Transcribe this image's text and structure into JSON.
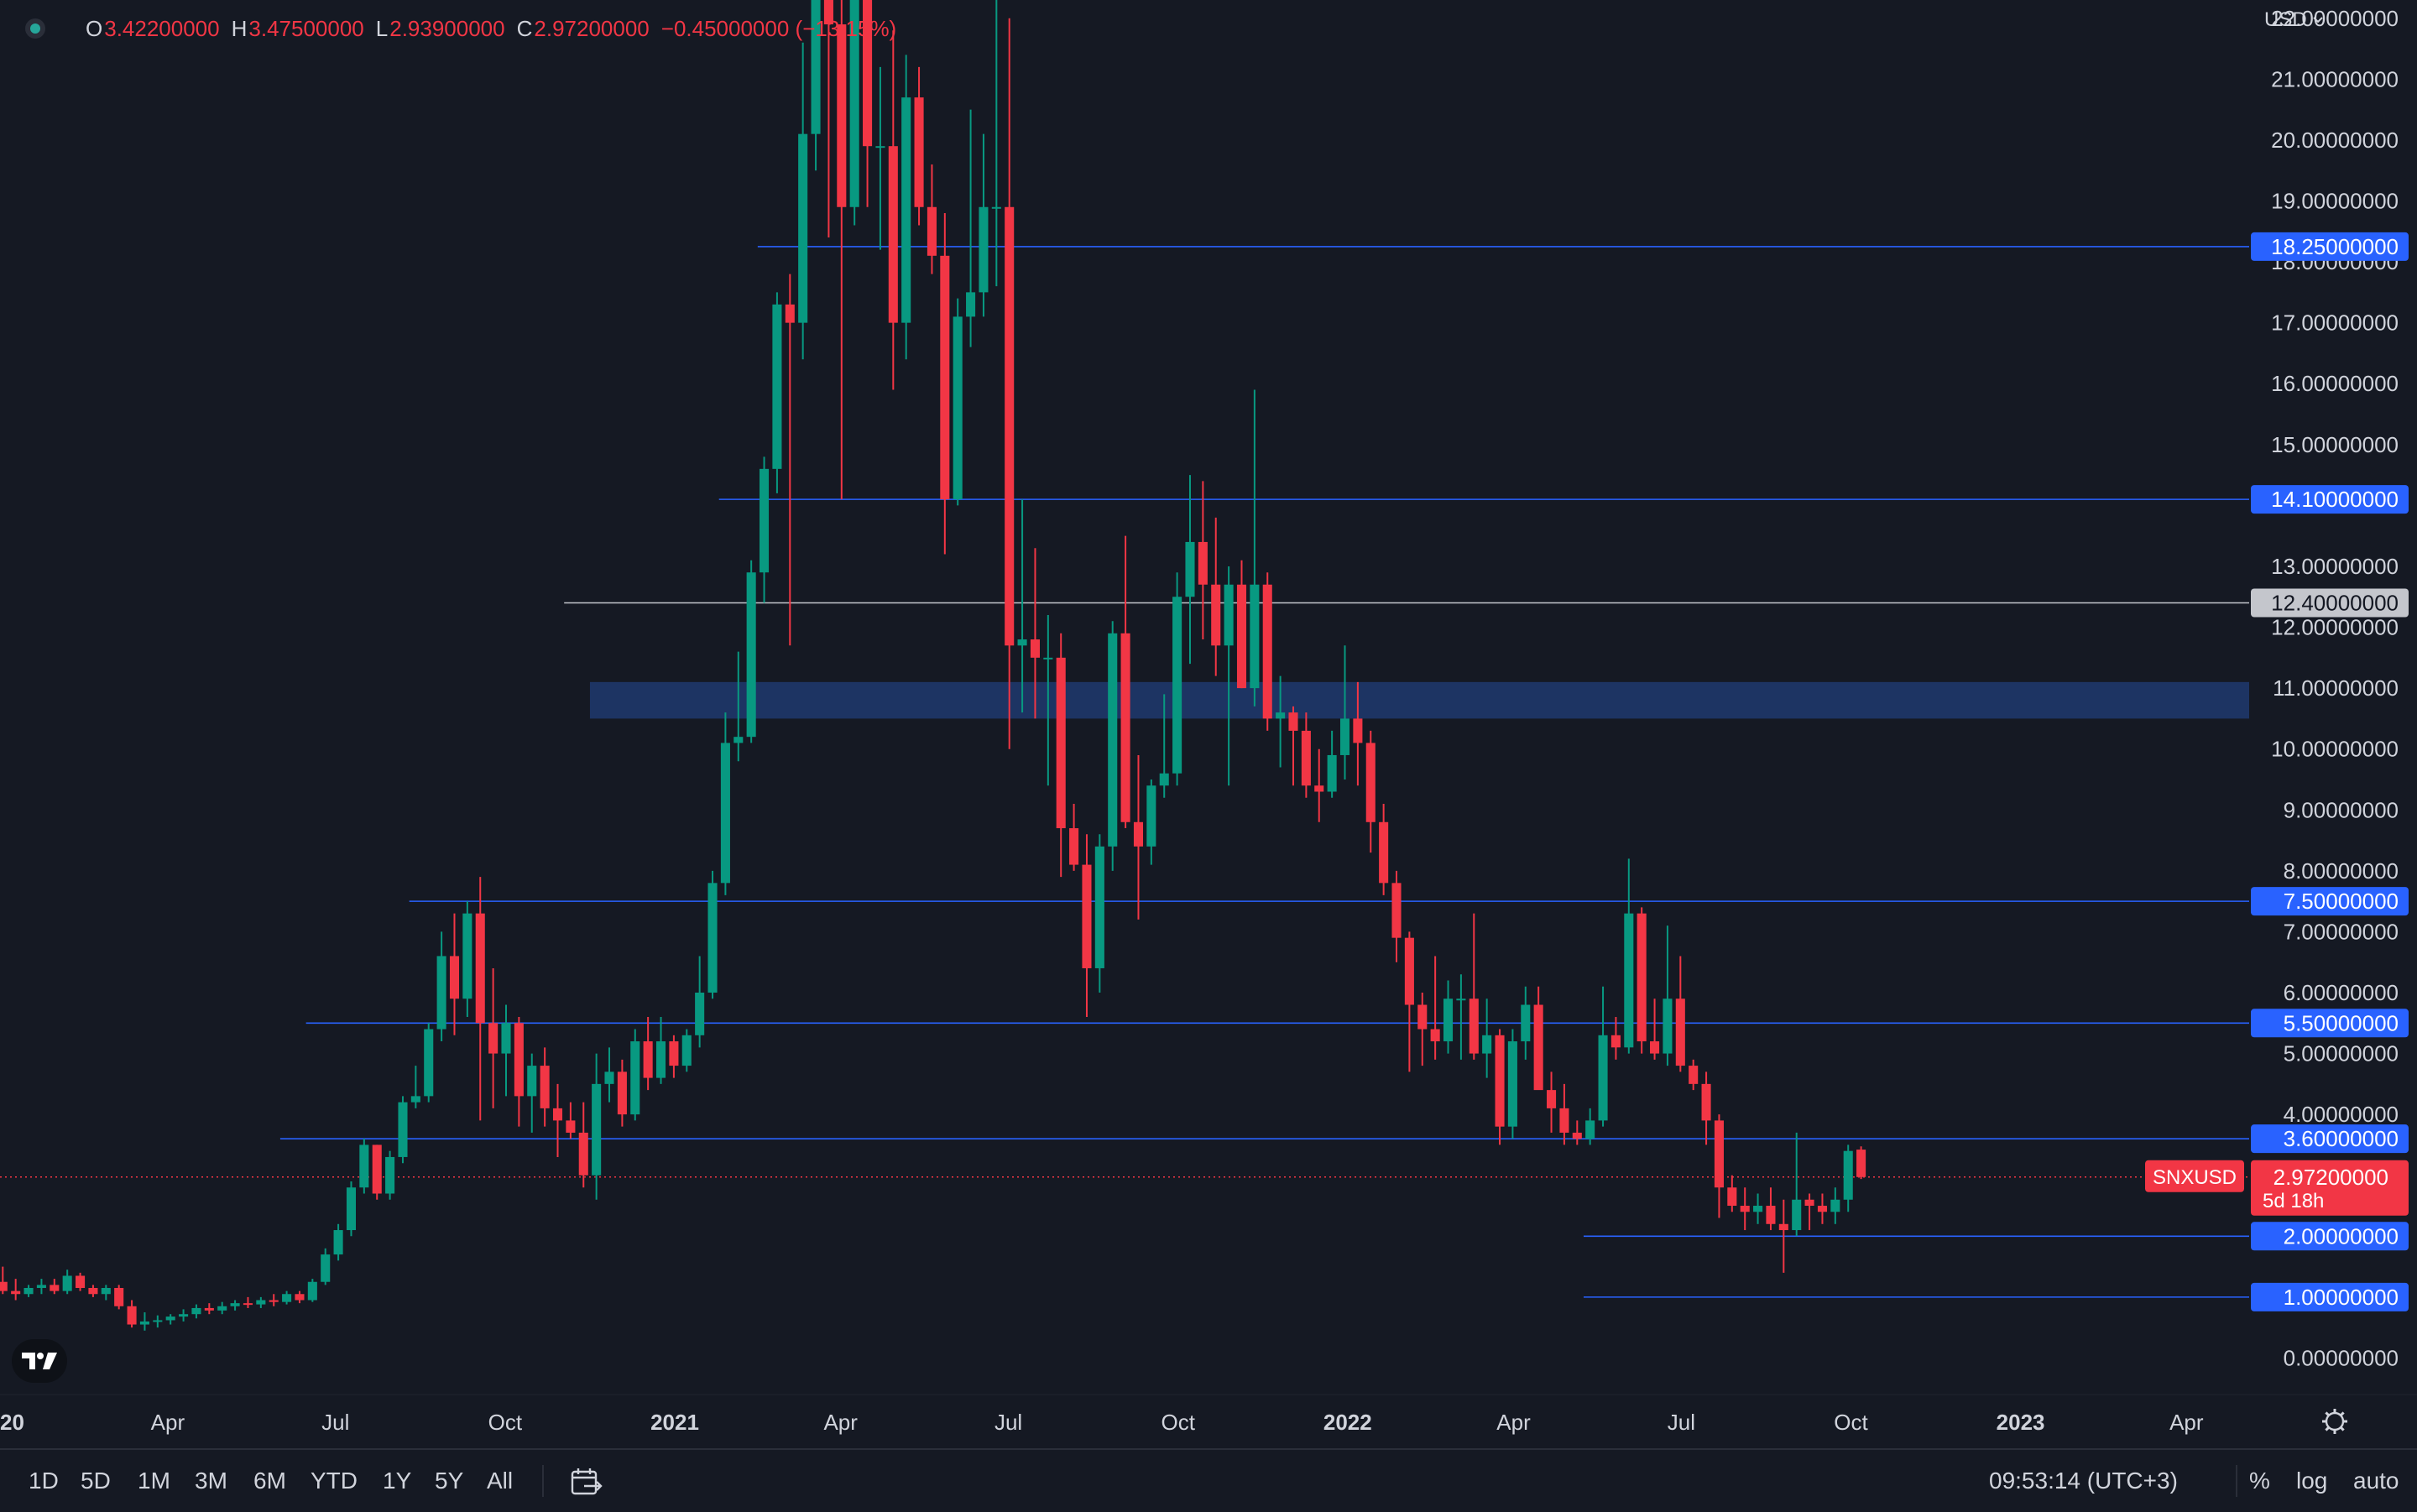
{
  "legend": {
    "open_label": "O",
    "open": "3.42200000",
    "high_label": "H",
    "high": "3.47500000",
    "low_label": "L",
    "low": "2.93900000",
    "close_label": "C",
    "close": "2.97200000",
    "change": "−0.45000000 (−13.15%)",
    "status_color": "#26a69a"
  },
  "currency": "USD",
  "colors": {
    "background": "#151923",
    "up": "#089981",
    "down": "#f23645",
    "level_line": "#2962ff",
    "zone": "#1f3a6e",
    "text": "#d1d4dc",
    "crosshair_label": "#c4c6cc"
  },
  "chart_data": {
    "type": "candlestick",
    "symbol": "SNXUSD",
    "interval": "1W",
    "scale": "linear",
    "ylim": [
      -0.6,
      22.3
    ],
    "y_ticks": [
      "22.00000000",
      "21.00000000",
      "20.00000000",
      "19.00000000",
      "18.00000000",
      "17.00000000",
      "16.00000000",
      "15.00000000",
      "14.00000000",
      "13.00000000",
      "12.00000000",
      "11.00000000",
      "10.00000000",
      "9.00000000",
      "8.00000000",
      "7.00000000",
      "6.00000000",
      "5.00000000",
      "4.00000000",
      "3.00000000",
      "2.00000000",
      "1.00000000",
      "0.00000000"
    ],
    "y_tick_values": [
      22,
      21,
      20,
      19,
      18,
      17,
      16,
      15,
      14,
      13,
      12,
      11,
      10,
      9,
      8,
      7,
      6,
      5,
      4,
      3,
      2,
      1,
      0
    ],
    "x_ticks": [
      "2020",
      "Apr",
      "Jul",
      "Oct",
      "2021",
      "Apr",
      "Jul",
      "Oct",
      "2022",
      "Apr",
      "Jul",
      "Oct",
      "2023",
      "Apr"
    ],
    "x_tick_dates": [
      "2020-01-01",
      "2020-04-01",
      "2020-07-01",
      "2020-10-01",
      "2021-01-01",
      "2021-04-01",
      "2021-07-01",
      "2021-10-01",
      "2022-01-01",
      "2022-04-01",
      "2022-07-01",
      "2022-10-01",
      "2023-01-01",
      "2023-04-01"
    ],
    "x_tick_bold": [
      true,
      false,
      false,
      false,
      true,
      false,
      false,
      false,
      true,
      false,
      false,
      false,
      true,
      false
    ],
    "xlim": [
      "2020-01-01",
      "2023-05-05"
    ],
    "first_candle_date": "2019-12-30",
    "candles": [
      {
        "o": 1.25,
        "h": 1.5,
        "l": 1.05,
        "c": 1.1
      },
      {
        "o": 1.1,
        "h": 1.3,
        "l": 0.95,
        "c": 1.05
      },
      {
        "o": 1.05,
        "h": 1.2,
        "l": 1.0,
        "c": 1.15
      },
      {
        "o": 1.15,
        "h": 1.3,
        "l": 1.05,
        "c": 1.2
      },
      {
        "o": 1.2,
        "h": 1.3,
        "l": 1.05,
        "c": 1.1
      },
      {
        "o": 1.1,
        "h": 1.45,
        "l": 1.05,
        "c": 1.35
      },
      {
        "o": 1.35,
        "h": 1.4,
        "l": 1.1,
        "c": 1.15
      },
      {
        "o": 1.15,
        "h": 1.2,
        "l": 1.0,
        "c": 1.05
      },
      {
        "o": 1.05,
        "h": 1.2,
        "l": 0.95,
        "c": 1.15
      },
      {
        "o": 1.15,
        "h": 1.2,
        "l": 0.8,
        "c": 0.85
      },
      {
        "o": 0.85,
        "h": 0.95,
        "l": 0.5,
        "c": 0.55
      },
      {
        "o": 0.55,
        "h": 0.75,
        "l": 0.45,
        "c": 0.6
      },
      {
        "o": 0.6,
        "h": 0.7,
        "l": 0.5,
        "c": 0.62
      },
      {
        "o": 0.62,
        "h": 0.72,
        "l": 0.55,
        "c": 0.68
      },
      {
        "o": 0.68,
        "h": 0.8,
        "l": 0.6,
        "c": 0.72
      },
      {
        "o": 0.72,
        "h": 0.88,
        "l": 0.65,
        "c": 0.82
      },
      {
        "o": 0.82,
        "h": 0.9,
        "l": 0.72,
        "c": 0.78
      },
      {
        "o": 0.78,
        "h": 0.92,
        "l": 0.72,
        "c": 0.85
      },
      {
        "o": 0.85,
        "h": 0.95,
        "l": 0.78,
        "c": 0.9
      },
      {
        "o": 0.9,
        "h": 1.0,
        "l": 0.82,
        "c": 0.88
      },
      {
        "o": 0.88,
        "h": 1.0,
        "l": 0.82,
        "c": 0.95
      },
      {
        "o": 0.95,
        "h": 1.05,
        "l": 0.85,
        "c": 0.92
      },
      {
        "o": 0.92,
        "h": 1.1,
        "l": 0.88,
        "c": 1.05
      },
      {
        "o": 1.05,
        "h": 1.1,
        "l": 0.9,
        "c": 0.95
      },
      {
        "o": 0.95,
        "h": 1.3,
        "l": 0.92,
        "c": 1.25
      },
      {
        "o": 1.25,
        "h": 1.8,
        "l": 1.2,
        "c": 1.7
      },
      {
        "o": 1.7,
        "h": 2.2,
        "l": 1.6,
        "c": 2.1
      },
      {
        "o": 2.1,
        "h": 2.9,
        "l": 2.0,
        "c": 2.8
      },
      {
        "o": 2.8,
        "h": 3.6,
        "l": 2.7,
        "c": 3.5
      },
      {
        "o": 3.5,
        "h": 3.5,
        "l": 2.6,
        "c": 2.7
      },
      {
        "o": 2.7,
        "h": 3.4,
        "l": 2.6,
        "c": 3.3
      },
      {
        "o": 3.3,
        "h": 4.3,
        "l": 3.2,
        "c": 4.2
      },
      {
        "o": 4.2,
        "h": 4.8,
        "l": 4.1,
        "c": 4.3
      },
      {
        "o": 4.3,
        "h": 5.5,
        "l": 4.2,
        "c": 5.4
      },
      {
        "o": 5.4,
        "h": 7.0,
        "l": 5.2,
        "c": 6.6
      },
      {
        "o": 6.6,
        "h": 7.3,
        "l": 5.3,
        "c": 5.9
      },
      {
        "o": 5.9,
        "h": 7.5,
        "l": 5.6,
        "c": 7.3
      },
      {
        "o": 7.3,
        "h": 7.9,
        "l": 3.9,
        "c": 5.5
      },
      {
        "o": 5.5,
        "h": 6.4,
        "l": 4.1,
        "c": 5.0
      },
      {
        "o": 5.0,
        "h": 5.8,
        "l": 4.3,
        "c": 5.5
      },
      {
        "o": 5.5,
        "h": 5.6,
        "l": 3.8,
        "c": 4.3
      },
      {
        "o": 4.3,
        "h": 5.0,
        "l": 3.7,
        "c": 4.8
      },
      {
        "o": 4.8,
        "h": 5.1,
        "l": 3.8,
        "c": 4.1
      },
      {
        "o": 4.1,
        "h": 4.5,
        "l": 3.3,
        "c": 3.9
      },
      {
        "o": 3.9,
        "h": 4.2,
        "l": 3.6,
        "c": 3.7
      },
      {
        "o": 3.7,
        "h": 4.2,
        "l": 2.8,
        "c": 3.0
      },
      {
        "o": 3.0,
        "h": 5.0,
        "l": 2.6,
        "c": 4.5
      },
      {
        "o": 4.5,
        "h": 5.1,
        "l": 4.2,
        "c": 4.7
      },
      {
        "o": 4.7,
        "h": 4.9,
        "l": 3.8,
        "c": 4.0
      },
      {
        "o": 4.0,
        "h": 5.4,
        "l": 3.9,
        "c": 5.2
      },
      {
        "o": 5.2,
        "h": 5.6,
        "l": 4.4,
        "c": 4.6
      },
      {
        "o": 4.6,
        "h": 5.6,
        "l": 4.5,
        "c": 5.2
      },
      {
        "o": 5.2,
        "h": 5.3,
        "l": 4.6,
        "c": 4.8
      },
      {
        "o": 4.8,
        "h": 5.4,
        "l": 4.7,
        "c": 5.3
      },
      {
        "o": 5.3,
        "h": 6.6,
        "l": 5.1,
        "c": 6.0
      },
      {
        "o": 6.0,
        "h": 8.0,
        "l": 5.9,
        "c": 7.8
      },
      {
        "o": 7.8,
        "h": 10.6,
        "l": 7.6,
        "c": 10.1
      },
      {
        "o": 10.1,
        "h": 11.6,
        "l": 9.8,
        "c": 10.2
      },
      {
        "o": 10.2,
        "h": 13.1,
        "l": 10.1,
        "c": 12.9
      },
      {
        "o": 12.9,
        "h": 14.8,
        "l": 12.4,
        "c": 14.6
      },
      {
        "o": 14.6,
        "h": 17.5,
        "l": 14.2,
        "c": 17.3
      },
      {
        "o": 17.3,
        "h": 17.8,
        "l": 11.7,
        "c": 17.0
      },
      {
        "o": 17.0,
        "h": 21.6,
        "l": 16.4,
        "c": 20.1
      },
      {
        "o": 20.1,
        "h": 25.0,
        "l": 19.5,
        "c": 24.0
      },
      {
        "o": 24.0,
        "h": 24.5,
        "l": 18.4,
        "c": 21.9
      },
      {
        "o": 21.9,
        "h": 25.0,
        "l": 14.1,
        "c": 18.9
      },
      {
        "o": 18.9,
        "h": 24.5,
        "l": 18.6,
        "c": 22.5
      },
      {
        "o": 22.5,
        "h": 22.8,
        "l": 18.9,
        "c": 19.9
      },
      {
        "o": 19.9,
        "h": 21.2,
        "l": 18.2,
        "c": 19.9
      },
      {
        "o": 19.9,
        "h": 21.8,
        "l": 15.9,
        "c": 17.0
      },
      {
        "o": 17.0,
        "h": 21.4,
        "l": 16.4,
        "c": 20.7
      },
      {
        "o": 20.7,
        "h": 21.2,
        "l": 18.6,
        "c": 18.9
      },
      {
        "o": 18.9,
        "h": 19.6,
        "l": 17.8,
        "c": 18.1
      },
      {
        "o": 18.1,
        "h": 18.8,
        "l": 13.2,
        "c": 14.1
      },
      {
        "o": 14.1,
        "h": 17.4,
        "l": 14.0,
        "c": 17.1
      },
      {
        "o": 17.1,
        "h": 20.5,
        "l": 16.6,
        "c": 17.5
      },
      {
        "o": 17.5,
        "h": 20.1,
        "l": 17.1,
        "c": 18.9
      },
      {
        "o": 18.9,
        "h": 25.0,
        "l": 17.6,
        "c": 18.9
      },
      {
        "o": 18.9,
        "h": 22.0,
        "l": 10.0,
        "c": 11.7
      },
      {
        "o": 11.7,
        "h": 14.1,
        "l": 10.6,
        "c": 11.8
      },
      {
        "o": 11.8,
        "h": 13.3,
        "l": 10.5,
        "c": 11.5
      },
      {
        "o": 11.5,
        "h": 12.2,
        "l": 9.4,
        "c": 11.5
      },
      {
        "o": 11.5,
        "h": 11.9,
        "l": 7.9,
        "c": 8.7
      },
      {
        "o": 8.7,
        "h": 9.1,
        "l": 8.0,
        "c": 8.1
      },
      {
        "o": 8.1,
        "h": 8.6,
        "l": 5.6,
        "c": 6.4
      },
      {
        "o": 6.4,
        "h": 8.6,
        "l": 6.0,
        "c": 8.4
      },
      {
        "o": 8.4,
        "h": 12.1,
        "l": 8.0,
        "c": 11.9
      },
      {
        "o": 11.9,
        "h": 13.5,
        "l": 8.7,
        "c": 8.8
      },
      {
        "o": 8.8,
        "h": 9.9,
        "l": 7.2,
        "c": 8.4
      },
      {
        "o": 8.4,
        "h": 9.5,
        "l": 8.1,
        "c": 9.4
      },
      {
        "o": 9.4,
        "h": 10.9,
        "l": 9.2,
        "c": 9.6
      },
      {
        "o": 9.6,
        "h": 12.9,
        "l": 9.4,
        "c": 12.5
      },
      {
        "o": 12.5,
        "h": 14.5,
        "l": 11.4,
        "c": 13.4
      },
      {
        "o": 13.4,
        "h": 14.4,
        "l": 11.8,
        "c": 12.7
      },
      {
        "o": 12.7,
        "h": 13.8,
        "l": 11.2,
        "c": 11.7
      },
      {
        "o": 11.7,
        "h": 13.0,
        "l": 9.4,
        "c": 12.7
      },
      {
        "o": 12.7,
        "h": 13.1,
        "l": 11.0,
        "c": 11.0
      },
      {
        "o": 11.0,
        "h": 15.9,
        "l": 10.7,
        "c": 12.7
      },
      {
        "o": 12.7,
        "h": 12.9,
        "l": 10.3,
        "c": 10.5
      },
      {
        "o": 10.5,
        "h": 11.2,
        "l": 9.7,
        "c": 10.6
      },
      {
        "o": 10.6,
        "h": 10.7,
        "l": 9.4,
        "c": 10.3
      },
      {
        "o": 10.3,
        "h": 10.6,
        "l": 9.2,
        "c": 9.4
      },
      {
        "o": 9.4,
        "h": 10.0,
        "l": 8.8,
        "c": 9.3
      },
      {
        "o": 9.3,
        "h": 10.3,
        "l": 9.2,
        "c": 9.9
      },
      {
        "o": 9.9,
        "h": 11.7,
        "l": 9.5,
        "c": 10.5
      },
      {
        "o": 10.5,
        "h": 11.1,
        "l": 9.4,
        "c": 10.1
      },
      {
        "o": 10.1,
        "h": 10.3,
        "l": 8.3,
        "c": 8.8
      },
      {
        "o": 8.8,
        "h": 9.1,
        "l": 7.6,
        "c": 7.8
      },
      {
        "o": 7.8,
        "h": 8.0,
        "l": 6.5,
        "c": 6.9
      },
      {
        "o": 6.9,
        "h": 7.0,
        "l": 4.7,
        "c": 5.8
      },
      {
        "o": 5.8,
        "h": 6.0,
        "l": 4.8,
        "c": 5.4
      },
      {
        "o": 5.4,
        "h": 6.6,
        "l": 4.9,
        "c": 5.2
      },
      {
        "o": 5.2,
        "h": 6.2,
        "l": 5.0,
        "c": 5.9
      },
      {
        "o": 5.9,
        "h": 6.3,
        "l": 4.9,
        "c": 5.9
      },
      {
        "o": 5.9,
        "h": 7.3,
        "l": 4.9,
        "c": 5.0
      },
      {
        "o": 5.0,
        "h": 5.9,
        "l": 4.6,
        "c": 5.3
      },
      {
        "o": 5.3,
        "h": 5.4,
        "l": 3.5,
        "c": 3.8
      },
      {
        "o": 3.8,
        "h": 5.4,
        "l": 3.6,
        "c": 5.2
      },
      {
        "o": 5.2,
        "h": 6.1,
        "l": 4.9,
        "c": 5.8
      },
      {
        "o": 5.8,
        "h": 6.1,
        "l": 4.5,
        "c": 4.4
      },
      {
        "o": 4.4,
        "h": 4.7,
        "l": 3.7,
        "c": 4.1
      },
      {
        "o": 4.1,
        "h": 4.5,
        "l": 3.5,
        "c": 3.7
      },
      {
        "o": 3.7,
        "h": 3.9,
        "l": 3.5,
        "c": 3.6
      },
      {
        "o": 3.6,
        "h": 4.1,
        "l": 3.5,
        "c": 3.9
      },
      {
        "o": 3.9,
        "h": 6.1,
        "l": 3.8,
        "c": 5.3
      },
      {
        "o": 5.3,
        "h": 5.6,
        "l": 4.9,
        "c": 5.1
      },
      {
        "o": 5.1,
        "h": 8.2,
        "l": 5.0,
        "c": 7.3
      },
      {
        "o": 7.3,
        "h": 7.4,
        "l": 5.0,
        "c": 5.2
      },
      {
        "o": 5.2,
        "h": 5.9,
        "l": 4.9,
        "c": 5.0
      },
      {
        "o": 5.0,
        "h": 7.1,
        "l": 4.8,
        "c": 5.9
      },
      {
        "o": 5.9,
        "h": 6.6,
        "l": 4.7,
        "c": 4.8
      },
      {
        "o": 4.8,
        "h": 4.9,
        "l": 4.4,
        "c": 4.5
      },
      {
        "o": 4.5,
        "h": 4.7,
        "l": 3.5,
        "c": 3.9
      },
      {
        "o": 3.9,
        "h": 4.0,
        "l": 2.3,
        "c": 2.8
      },
      {
        "o": 2.8,
        "h": 3.0,
        "l": 2.4,
        "c": 2.5
      },
      {
        "o": 2.5,
        "h": 2.8,
        "l": 2.1,
        "c": 2.4
      },
      {
        "o": 2.4,
        "h": 2.7,
        "l": 2.2,
        "c": 2.5
      },
      {
        "o": 2.5,
        "h": 2.8,
        "l": 2.1,
        "c": 2.2
      },
      {
        "o": 2.2,
        "h": 2.6,
        "l": 1.4,
        "c": 2.1
      },
      {
        "o": 2.1,
        "h": 3.7,
        "l": 2.0,
        "c": 2.6
      },
      {
        "o": 2.6,
        "h": 2.7,
        "l": 2.1,
        "c": 2.5
      },
      {
        "o": 2.5,
        "h": 2.7,
        "l": 2.2,
        "c": 2.4
      },
      {
        "o": 2.4,
        "h": 2.8,
        "l": 2.2,
        "c": 2.6
      },
      {
        "o": 2.6,
        "h": 3.5,
        "l": 2.4,
        "c": 3.4
      },
      {
        "o": 3.422,
        "h": 3.475,
        "l": 2.939,
        "c": 2.972
      }
    ],
    "horizontal_levels": [
      {
        "price": 18.25,
        "label": "18.25000000",
        "start": "2021-02-15",
        "color": "#2962ff",
        "label_bg": "#2962ff"
      },
      {
        "price": 14.1,
        "label": "14.10000000",
        "start": "2021-01-25",
        "color": "#2962ff",
        "label_bg": "#2962ff"
      },
      {
        "price": 12.4,
        "label": "12.40000000",
        "start": "2020-11-02",
        "color": "#c4c6cc",
        "label_bg": "#c4c6cc"
      },
      {
        "price": 7.5,
        "label": "7.50000000",
        "start": "2020-08-10",
        "color": "#2962ff",
        "label_bg": "#2962ff"
      },
      {
        "price": 5.5,
        "label": "5.50000000",
        "start": "2020-06-15",
        "color": "#2962ff",
        "label_bg": "#2962ff"
      },
      {
        "price": 3.6,
        "label": "3.60000000",
        "start": "2020-06-01",
        "color": "#2962ff",
        "label_bg": "#2962ff"
      },
      {
        "price": 2.0,
        "label": "2.00000000",
        "start": "2022-05-09",
        "color": "#2962ff",
        "label_bg": "#2962ff"
      },
      {
        "price": 1.0,
        "label": "1.00000000",
        "start": "2022-05-09",
        "color": "#2962ff",
        "label_bg": "#2962ff"
      }
    ],
    "zone": {
      "low": 10.5,
      "high": 11.1,
      "start": "2020-11-16"
    },
    "last_price": {
      "value": 2.972,
      "label": "2.97200000",
      "symbol": "SNXUSD",
      "countdown": "5d 18h",
      "color": "#f23645"
    }
  },
  "toolbar": {
    "ranges": [
      "1D",
      "5D",
      "1M",
      "3M",
      "6M",
      "YTD",
      "1Y",
      "5Y",
      "All"
    ],
    "time": "09:53:14 (UTC+3)",
    "percent": "%",
    "log": "log",
    "auto": "auto"
  }
}
